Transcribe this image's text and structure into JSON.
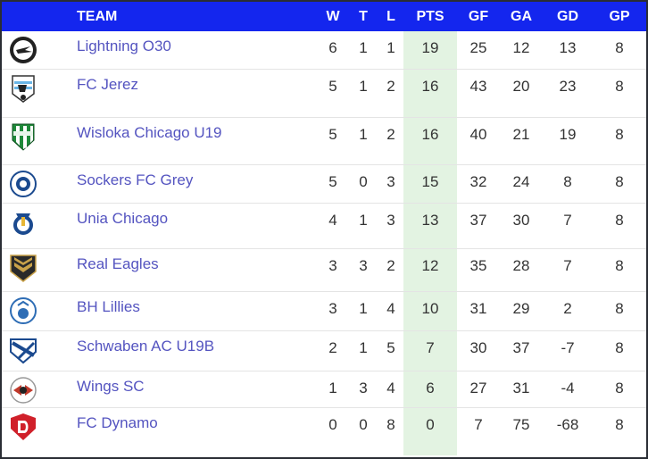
{
  "headers": {
    "team": "TEAM",
    "w": "W",
    "t": "T",
    "l": "L",
    "pts": "PTS",
    "gf": "GF",
    "ga": "GA",
    "gd": "GD",
    "gp": "GP"
  },
  "colors": {
    "header_bg": "#1426ee",
    "pts_column_bg": "#e3f3e2",
    "team_link": "#5454c0"
  },
  "rows": [
    {
      "team": "Lightning O30",
      "logo": "lightning-logo-icon",
      "w": "6",
      "t": "1",
      "l": "1",
      "pts": "19",
      "gf": "25",
      "ga": "12",
      "gd": "13",
      "gp": "8"
    },
    {
      "team": "FC Jerez",
      "logo": "fc-jerez-logo-icon",
      "w": "5",
      "t": "1",
      "l": "2",
      "pts": "16",
      "gf": "43",
      "ga": "20",
      "gd": "23",
      "gp": "8"
    },
    {
      "team": "Wisloka Chicago U19",
      "logo": "wisloka-logo-icon",
      "w": "5",
      "t": "1",
      "l": "2",
      "pts": "16",
      "gf": "40",
      "ga": "21",
      "gd": "19",
      "gp": "8"
    },
    {
      "team": "Sockers FC Grey",
      "logo": "sockers-logo-icon",
      "w": "5",
      "t": "0",
      "l": "3",
      "pts": "15",
      "gf": "32",
      "ga": "24",
      "gd": "8",
      "gp": "8"
    },
    {
      "team": "Unia Chicago",
      "logo": "unia-logo-icon",
      "w": "4",
      "t": "1",
      "l": "3",
      "pts": "13",
      "gf": "37",
      "ga": "30",
      "gd": "7",
      "gp": "8"
    },
    {
      "team": "Real Eagles",
      "logo": "real-eagles-logo-icon",
      "w": "3",
      "t": "3",
      "l": "2",
      "pts": "12",
      "gf": "35",
      "ga": "28",
      "gd": "7",
      "gp": "8"
    },
    {
      "team": "BH Lillies",
      "logo": "bh-lillies-logo-icon",
      "w": "3",
      "t": "1",
      "l": "4",
      "pts": "10",
      "gf": "31",
      "ga": "29",
      "gd": "2",
      "gp": "8"
    },
    {
      "team": "Schwaben AC U19B",
      "logo": "schwaben-logo-icon",
      "w": "2",
      "t": "1",
      "l": "5",
      "pts": "7",
      "gf": "30",
      "ga": "37",
      "gd": "-7",
      "gp": "8"
    },
    {
      "team": "Wings SC",
      "logo": "wings-logo-icon",
      "w": "1",
      "t": "3",
      "l": "4",
      "pts": "6",
      "gf": "27",
      "ga": "31",
      "gd": "-4",
      "gp": "8"
    },
    {
      "team": "FC Dynamo",
      "logo": "fc-dynamo-logo-icon",
      "w": "0",
      "t": "0",
      "l": "8",
      "pts": "0",
      "gf": "7",
      "ga": "75",
      "gd": "-68",
      "gp": "8"
    }
  ]
}
